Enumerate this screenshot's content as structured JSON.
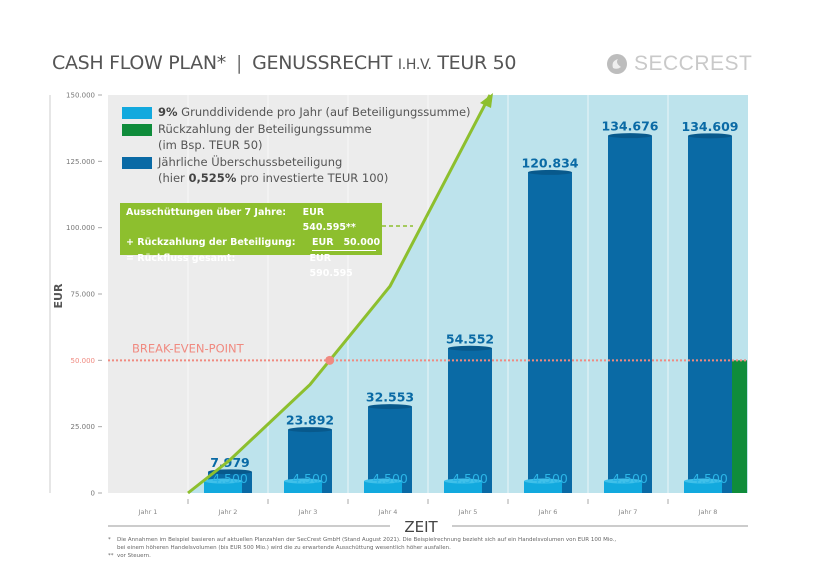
{
  "header": {
    "title_main": "CASH FLOW PLAN*",
    "title_sub": "GENUSSRECHT",
    "title_small": "I.H.V.",
    "title_end": "TEUR 50",
    "logo": "SECCREST",
    "logo_icon": "seccrest-circle-logo-icon"
  },
  "legend": [
    {
      "bold": "9%",
      "text": " Grunddividende pro Jahr (auf Beteiligungssumme)",
      "color": "#12a9de"
    },
    {
      "bold": "",
      "text": "Rückzahlung der Beteiligungssumme",
      "text2": "(im Bsp. TEUR 50)",
      "color": "#0f8c3b"
    },
    {
      "bold": "",
      "text": "Jährliche Überschussbeteiligung",
      "text2_pre": "(hier ",
      "text2_bold": "0,525%",
      "text2_post": " pro investierte TEUR 100)",
      "color": "#0a6aa5"
    }
  ],
  "summary": {
    "rows": [
      {
        "label": "Ausschüttungen über 7 Jahre:",
        "value": "EUR 540.595**"
      },
      {
        "label": "+ Rückzahlung der Beteiligung:",
        "value": "EUR   50.000"
      },
      {
        "label": "= Rückfluss gesamt:",
        "value": "EUR 590.595"
      }
    ],
    "color": "#8dbf2e"
  },
  "chart_data": {
    "type": "bar",
    "title": "CASH FLOW PLAN* | GENUSSRECHT I.H.V. TEUR 50",
    "xlabel": "ZEIT",
    "ylabel": "EUR",
    "ylim": [
      0,
      150000
    ],
    "yticks": [
      0,
      25000,
      50000,
      75000,
      100000,
      125000,
      150000
    ],
    "ytick_labels": [
      "0",
      "25.000",
      "50.000",
      "75.000",
      "100.000",
      "125.000",
      "150.000"
    ],
    "categories": [
      "Jahr 1",
      "Jahr 2",
      "Jahr 3",
      "Jahr 4",
      "Jahr 5",
      "Jahr 6",
      "Jahr 7",
      "Jahr 8"
    ],
    "series": [
      {
        "name": "Jährliche Überschussbeteiligung",
        "values": [
          null,
          7979,
          23892,
          32553,
          54552,
          120834,
          134676,
          134609
        ],
        "labels": [
          "",
          "7.979",
          "23.892",
          "32.553",
          "54.552",
          "120.834",
          "134.676",
          "134.609"
        ],
        "color": "#0a6aa5"
      },
      {
        "name": "9% Grunddividende pro Jahr",
        "values": [
          null,
          4500,
          4500,
          4500,
          4500,
          4500,
          4500,
          4500
        ],
        "labels": [
          "",
          "4.500",
          "4.500",
          "4.500",
          "4.500",
          "4.500",
          "4.500",
          "4.500"
        ],
        "color": "#12a9de"
      },
      {
        "name": "Rückzahlung der Beteiligungssumme",
        "values": [
          null,
          null,
          null,
          null,
          null,
          null,
          null,
          50000
        ],
        "color": "#0f8c3b"
      }
    ],
    "cumulative_line": {
      "x": [
        "Jahr 1",
        "Jahr 2",
        "Jahr 3",
        "Jahr 4",
        "Jahr 5"
      ],
      "values": [
        0,
        12479,
        40871,
        77924,
        150000
      ],
      "color": "#8dbf2e"
    },
    "break_even": {
      "label": "BREAK-EVEN-POINT",
      "value": 50000,
      "color": "#f08a80"
    },
    "grid": false,
    "legend_position": "top-left"
  },
  "footnotes": [
    {
      "mark": "*",
      "text": "Die Annahmen im Beispiel basieren auf aktuellen Planzahlen der SecCrest GmbH (Stand August 2021). Die Beispielrechnung bezieht sich auf ein Handelsvolumen von EUR 100 Mio.,"
    },
    {
      "mark": "",
      "text": "bei einem höheren Handelsvolumen (bis EUR 500 Mio.) wird die zu erwartende Ausschüttung wesentlich höher ausfallen."
    },
    {
      "mark": "**",
      "text": "vor Steuern."
    }
  ]
}
